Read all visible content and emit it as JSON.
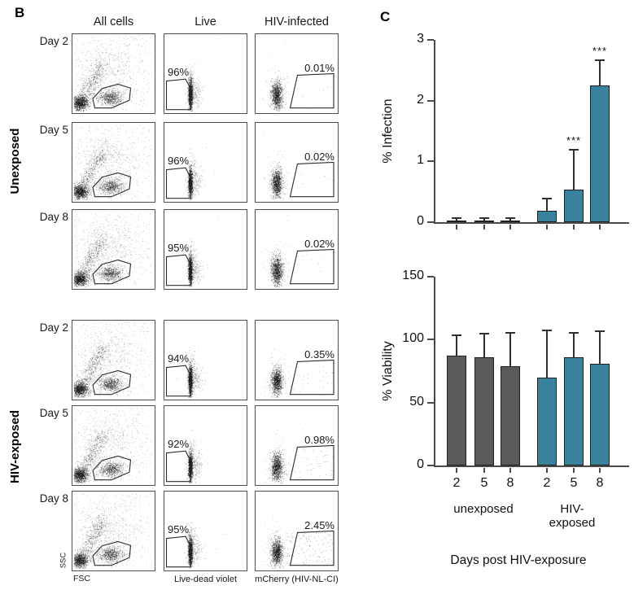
{
  "panelB": {
    "label": "B",
    "col_headers": [
      "All cells",
      "Live",
      "HIV-infected"
    ],
    "group_labels": [
      "Unexposed",
      "HIV-exposed"
    ],
    "rows": [
      {
        "group": "Unexposed",
        "day": "Day 2",
        "live_pct": "96%",
        "infected_pct": "0.01%"
      },
      {
        "group": "Unexposed",
        "day": "Day 5",
        "live_pct": "96%",
        "infected_pct": "0.02%"
      },
      {
        "group": "Unexposed",
        "day": "Day 8",
        "live_pct": "95%",
        "infected_pct": "0.02%"
      },
      {
        "group": "HIV-exposed",
        "day": "Day 2",
        "live_pct": "94%",
        "infected_pct": "0.35%"
      },
      {
        "group": "HIV-exposed",
        "day": "Day 5",
        "live_pct": "92%",
        "infected_pct": "0.98%"
      },
      {
        "group": "HIV-exposed",
        "day": "Day 8",
        "live_pct": "95%",
        "infected_pct": "2.45%"
      }
    ],
    "axes": {
      "y_scatter": "SSC",
      "x_scatter": "FSC",
      "x_live": "Live-dead violet",
      "x_infected": "mCherry (HIV-NL-CI)"
    }
  },
  "panelC": {
    "label": "C",
    "xlabel": "Days post HIV-exposure",
    "group_labels": [
      "unexposed",
      "HIV-\nexposed"
    ],
    "colors": {
      "unexposed": "#5a5a5a",
      "hiv_exposed": "#39829e",
      "axis": "#4a4a4a"
    }
  },
  "chart_data": [
    {
      "type": "bar",
      "title": "",
      "ylabel": "% Infection",
      "ylim": [
        0,
        3
      ],
      "yticks": [
        0,
        1,
        2,
        3
      ],
      "categories": [
        "2",
        "5",
        "8",
        "2",
        "5",
        "8"
      ],
      "grid": false,
      "legend": "none",
      "series": [
        {
          "name": "unexposed",
          "color": "#5a5a5a",
          "values": [
            0.02,
            0.02,
            0.02
          ],
          "errors": [
            0.03,
            0.03,
            0.03
          ],
          "sig": [
            "",
            "",
            ""
          ]
        },
        {
          "name": "HIV-exposed",
          "color": "#39829e",
          "values": [
            0.19,
            0.53,
            2.25
          ],
          "errors": [
            0.19,
            0.65,
            0.4
          ],
          "sig": [
            "",
            "***",
            "***"
          ]
        }
      ]
    },
    {
      "type": "bar",
      "title": "",
      "ylabel": "% Viability",
      "xlabel": "Days post HIV-exposure",
      "ylim": [
        0,
        150
      ],
      "yticks": [
        0,
        50,
        100,
        150
      ],
      "categories": [
        "2",
        "5",
        "8",
        "2",
        "5",
        "8"
      ],
      "grid": false,
      "legend": "none",
      "series": [
        {
          "name": "unexposed",
          "color": "#5a5a5a",
          "values": [
            87,
            86,
            79
          ],
          "errors": [
            16,
            18,
            26
          ],
          "sig": [
            "",
            "",
            ""
          ]
        },
        {
          "name": "HIV-exposed",
          "color": "#39829e",
          "values": [
            70,
            86,
            81
          ],
          "errors": [
            37,
            19,
            25
          ],
          "sig": [
            "",
            "",
            ""
          ]
        }
      ]
    }
  ]
}
